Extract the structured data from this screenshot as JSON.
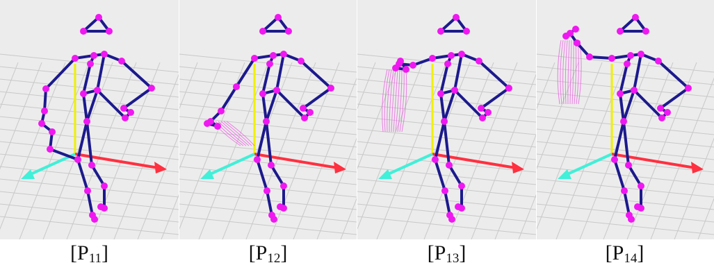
{
  "panels": [
    {
      "id": "p11",
      "label_main": "[P",
      "label_sub": "11",
      "label_close": "]",
      "pose": "arm-down-side"
    },
    {
      "id": "p12",
      "label_main": "[P",
      "label_sub": "12",
      "label_close": "]",
      "pose": "arm-low-reach"
    },
    {
      "id": "p13",
      "label_main": "[P",
      "label_sub": "13",
      "label_close": "]",
      "pose": "arm-horizontal"
    },
    {
      "id": "p14",
      "label_main": "[P",
      "label_sub": "14",
      "label_close": "]",
      "pose": "arm-raised"
    }
  ],
  "colors": {
    "background": "#ececec",
    "grid": "#c8c8c8",
    "bone": "#1c1a8c",
    "joint": "#f018f0",
    "trail": "#e860e0",
    "axis_x": "#ff3040",
    "axis_y": "#f0f000",
    "axis_z": "#40f0d8"
  }
}
